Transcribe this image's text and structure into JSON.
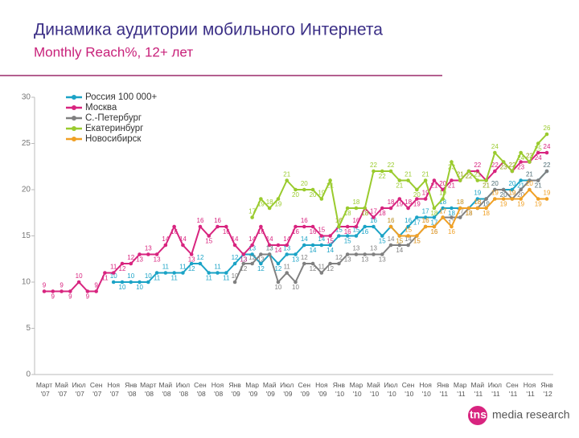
{
  "chart_data": {
    "type": "line",
    "title": "Динамика аудитории мобильного Интернета",
    "subtitle": "Monthly Reach%, 12+ лет",
    "categories": [
      "Март '07",
      null,
      "Май '07",
      null,
      "Июл '07",
      null,
      "Сен '07",
      null,
      "Ноя '07",
      null,
      "Янв '08",
      null,
      "Март '08",
      null,
      "Май '08",
      null,
      "Июл '08",
      null,
      "Сен '08",
      null,
      "Ноя '08",
      null,
      "Янв '09",
      null,
      "Мар '09",
      null,
      "Май '09",
      null,
      "Июл '09",
      null,
      "Сен '09",
      null,
      "Ноя '09",
      null,
      "Янв '10",
      null,
      "Мар '10",
      null,
      "Май '10",
      null,
      "Июл '10",
      null,
      "Сен '10",
      null,
      "Ноя '10",
      null,
      "Янв '11",
      null,
      "Мар '11",
      null,
      "Май '11",
      null,
      "Июл '11",
      null,
      "Сен '11",
      null,
      "Ноя '11",
      null,
      "Янв '12"
    ],
    "series": [
      {
        "name": "Россия 100 000+",
        "color": "#1ba3c6",
        "values": [
          null,
          null,
          null,
          null,
          null,
          null,
          null,
          null,
          10,
          10,
          10,
          10,
          10,
          11,
          11,
          11,
          11,
          12,
          12,
          11,
          11,
          11,
          12,
          13,
          13,
          12,
          13,
          12,
          13,
          13,
          14,
          14,
          14,
          14,
          15,
          15,
          15,
          16,
          16,
          15,
          16,
          15,
          16,
          17,
          17,
          17,
          18,
          18,
          18,
          18,
          19,
          19,
          20,
          20,
          20,
          21,
          21,
          21,
          22
        ]
      },
      {
        "name": "Москва",
        "color": "#d8247f",
        "values": [
          9,
          9,
          9,
          9,
          10,
          9,
          9,
          11,
          11,
          12,
          12,
          13,
          13,
          13,
          14,
          16,
          14,
          13,
          16,
          15,
          16,
          16,
          14,
          13,
          14,
          16,
          14,
          14,
          14,
          16,
          16,
          16,
          15,
          15,
          16,
          16,
          16,
          18,
          17,
          18,
          18,
          19,
          18,
          19,
          19,
          21,
          20,
          21,
          21,
          22,
          22,
          21,
          22,
          23,
          22,
          23,
          23,
          24,
          24
        ]
      },
      {
        "name": "С.-Петербург",
        "color": "#808080",
        "values": [
          null,
          null,
          null,
          null,
          null,
          null,
          null,
          null,
          null,
          null,
          null,
          null,
          null,
          null,
          null,
          null,
          null,
          null,
          null,
          null,
          null,
          null,
          10,
          12,
          12,
          13,
          13,
          10,
          11,
          10,
          12,
          12,
          11,
          12,
          12,
          13,
          13,
          13,
          13,
          13,
          14,
          14,
          14,
          15,
          16,
          16,
          17,
          17,
          17,
          18,
          18,
          19,
          20,
          20,
          19,
          20,
          21,
          21,
          22
        ]
      },
      {
        "name": "Екатеринбург",
        "color": "#9acb2e",
        "values": [
          null,
          null,
          null,
          null,
          null,
          null,
          null,
          null,
          null,
          null,
          null,
          null,
          null,
          null,
          null,
          null,
          null,
          null,
          null,
          null,
          null,
          null,
          null,
          null,
          17,
          19,
          18,
          19,
          21,
          20,
          20,
          20,
          19,
          21,
          16,
          18,
          18,
          18,
          22,
          22,
          22,
          21,
          21,
          20,
          21,
          18,
          19,
          23,
          21,
          22,
          21,
          21,
          24,
          23,
          22,
          24,
          23,
          25,
          26
        ]
      },
      {
        "name": "Новосибирск",
        "color": "#f0a024",
        "values": [
          null,
          null,
          null,
          null,
          null,
          null,
          null,
          null,
          null,
          null,
          null,
          null,
          null,
          null,
          null,
          null,
          null,
          null,
          null,
          null,
          null,
          null,
          null,
          null,
          null,
          null,
          null,
          null,
          null,
          null,
          null,
          null,
          null,
          null,
          null,
          null,
          null,
          null,
          null,
          null,
          16,
          15,
          15,
          15,
          16,
          16,
          17,
          16,
          18,
          18,
          18,
          18,
          19,
          19,
          19,
          19,
          20,
          19,
          19
        ]
      }
    ],
    "ylim": [
      0,
      30
    ],
    "yticks": [
      0,
      5,
      10,
      15,
      20,
      25,
      30
    ],
    "grid": false
  },
  "footer": {
    "brand": "tns",
    "text": "media research"
  }
}
